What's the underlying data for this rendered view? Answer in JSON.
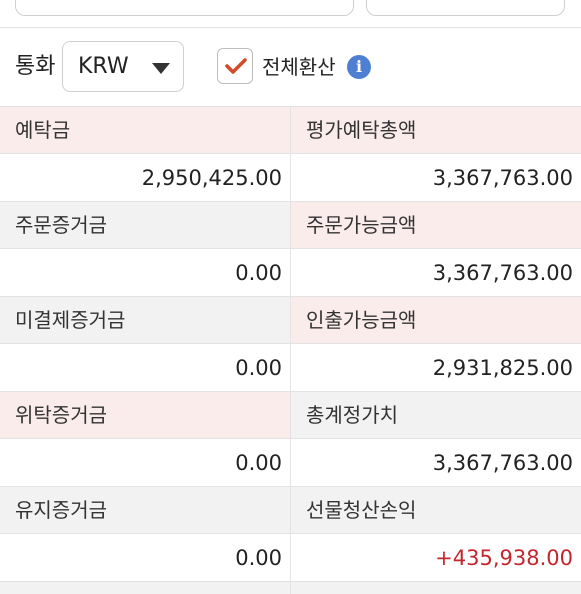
{
  "controls": {
    "currency_label": "통화",
    "currency_value": "KRW",
    "convert_all_label": "전체환산",
    "convert_all_checked": true,
    "info_icon": "info-icon",
    "check_color": "#d24a2a",
    "info_color": "#4f7fd3"
  },
  "rows": [
    {
      "left": {
        "label": "예탁금",
        "value": "2,950,425.00"
      },
      "right": {
        "label": "평가예탁총액",
        "value": "3,367,763.00"
      }
    },
    {
      "left": {
        "label": "주문증거금",
        "value": "0.00"
      },
      "right": {
        "label": "주문가능금액",
        "value": "3,367,763.00"
      }
    },
    {
      "left": {
        "label": "미결제증거금",
        "value": "0.00"
      },
      "right": {
        "label": "인출가능금액",
        "value": "2,931,825.00"
      }
    },
    {
      "left": {
        "label": "위탁증거금",
        "value": "0.00"
      },
      "right": {
        "label": "총계정가치",
        "value": "3,367,763.00"
      }
    },
    {
      "left": {
        "label": "유지증거금",
        "value": "0.00"
      },
      "right": {
        "label": "선물청산손익",
        "value": "+435,938.00"
      }
    }
  ],
  "colors": {
    "label_pink": "#fbecec",
    "label_gray": "#f2f2f2",
    "positive_red": "#c4262e"
  }
}
